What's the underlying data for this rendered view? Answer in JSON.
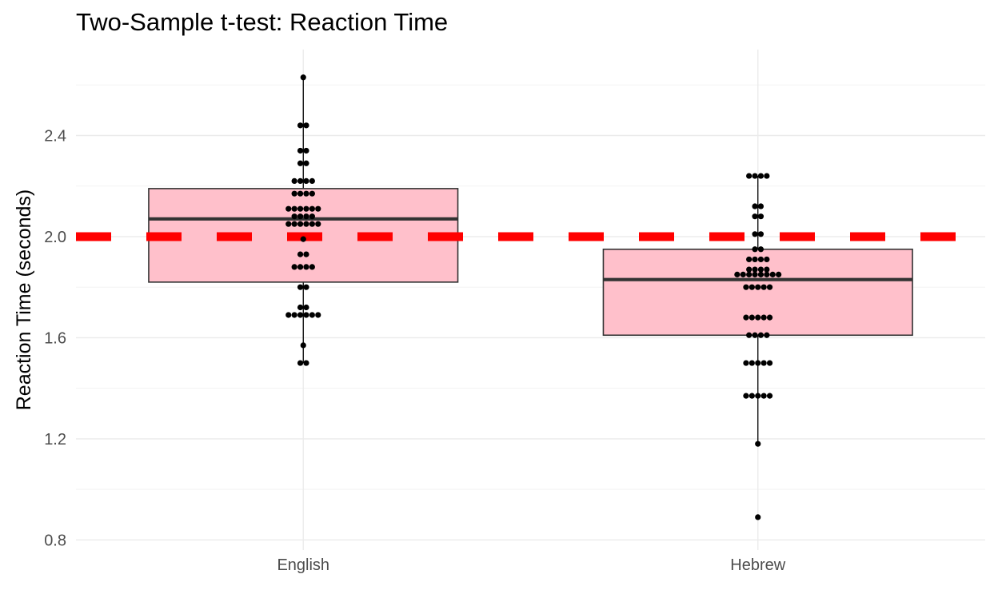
{
  "chart_data": {
    "type": "box",
    "title": "Two-Sample t-test: Reaction Time",
    "xlabel": "",
    "ylabel": "Reaction Time (seconds)",
    "ylim": [
      0.76,
      2.74
    ],
    "y_ticks": [
      "0.8",
      "1.2",
      "1.6",
      "2.0",
      "2.4"
    ],
    "categories": [
      "English",
      "Hebrew"
    ],
    "reference_line": {
      "y": 2.0,
      "style": "dashed",
      "color": "#ff0000"
    },
    "grid": true,
    "box_fill": "#ffc0cb",
    "box_stroke": "#333333",
    "point_color": "#000000",
    "boxes": [
      {
        "category": "English",
        "q1": 1.82,
        "median": 2.07,
        "q3": 2.19,
        "whisker_low": 1.5,
        "whisker_high": 2.63
      },
      {
        "category": "Hebrew",
        "q1": 1.61,
        "median": 1.83,
        "q3": 1.95,
        "whisker_low": 1.18,
        "whisker_high": 2.24
      }
    ],
    "points": [
      {
        "category": "English",
        "values": [
          2.63,
          2.44,
          2.44,
          2.34,
          2.34,
          2.29,
          2.29,
          2.22,
          2.22,
          2.22,
          2.22,
          2.17,
          2.17,
          2.17,
          2.17,
          2.11,
          2.11,
          2.11,
          2.11,
          2.11,
          2.11,
          2.08,
          2.08,
          2.08,
          2.08,
          2.05,
          2.05,
          2.05,
          2.05,
          2.05,
          2.05,
          1.99,
          1.93,
          1.93,
          1.88,
          1.88,
          1.88,
          1.88,
          1.8,
          1.8,
          1.72,
          1.72,
          1.69,
          1.69,
          1.69,
          1.69,
          1.69,
          1.69,
          1.57,
          1.5,
          1.5
        ]
      },
      {
        "category": "Hebrew",
        "values": [
          2.24,
          2.24,
          2.24,
          2.24,
          2.12,
          2.12,
          2.08,
          2.08,
          2.01,
          2.01,
          1.95,
          1.95,
          1.91,
          1.91,
          1.91,
          1.91,
          1.87,
          1.87,
          1.87,
          1.87,
          1.85,
          1.85,
          1.85,
          1.85,
          1.85,
          1.85,
          1.85,
          1.85,
          1.8,
          1.8,
          1.8,
          1.8,
          1.8,
          1.68,
          1.68,
          1.68,
          1.68,
          1.68,
          1.61,
          1.61,
          1.61,
          1.61,
          1.5,
          1.5,
          1.5,
          1.5,
          1.5,
          1.37,
          1.37,
          1.37,
          1.37,
          1.37,
          1.18,
          0.89
        ]
      }
    ]
  }
}
